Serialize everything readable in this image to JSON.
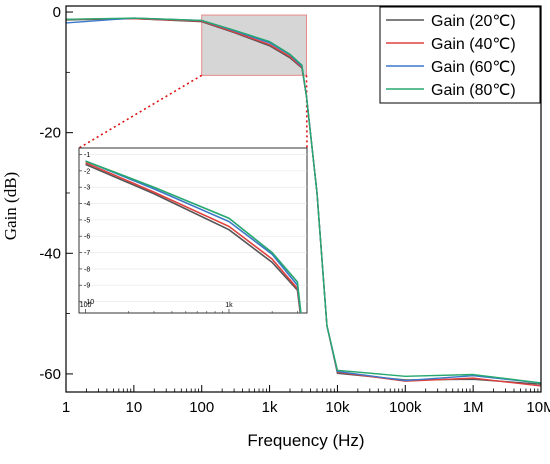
{
  "chart_data": {
    "type": "line",
    "xscale": "log",
    "xlabel": "Frequency (Hz)",
    "ylabel": "Gain (dB)",
    "xlim": [
      1,
      10000000
    ],
    "ylim": [
      -63,
      1
    ],
    "x_ticks": [
      {
        "value": 1,
        "label": "1"
      },
      {
        "value": 10,
        "label": "10"
      },
      {
        "value": 100,
        "label": "100"
      },
      {
        "value": 1000,
        "label": "1k"
      },
      {
        "value": 10000,
        "label": "10k"
      },
      {
        "value": 100000,
        "label": "100k"
      },
      {
        "value": 1000000,
        "label": "1M"
      },
      {
        "value": 10000000,
        "label": "10M"
      }
    ],
    "y_ticks": [
      {
        "value": 0,
        "label": "0"
      },
      {
        "value": -20,
        "label": "-20"
      },
      {
        "value": -40,
        "label": "-40"
      },
      {
        "value": -60,
        "label": "-60"
      }
    ],
    "legend_position": "top-right",
    "series": [
      {
        "name": "Gain (20℃)",
        "color": "#555555",
        "x": [
          1,
          10,
          100,
          300,
          1000,
          2000,
          3000,
          3500,
          5000,
          7000,
          10000,
          100000,
          1000000,
          10000000
        ],
        "y": [
          -1.3,
          -1.1,
          -1.6,
          -3.4,
          -5.6,
          -7.6,
          -9.3,
          -14,
          -30,
          -52,
          -59.9,
          -61.0,
          -60.9,
          -61.7
        ]
      },
      {
        "name": "Gain (40℃)",
        "color": "#e0413f",
        "x": [
          1,
          10,
          100,
          300,
          1000,
          2000,
          3000,
          3500,
          5000,
          7000,
          10000,
          100000,
          1000000,
          10000000
        ],
        "y": [
          -1.2,
          -1.1,
          -1.5,
          -3.3,
          -5.4,
          -7.4,
          -9.2,
          -14,
          -30,
          -52,
          -59.7,
          -61.2,
          -60.7,
          -62.0
        ]
      },
      {
        "name": "Gain (60℃)",
        "color": "#3a78c9",
        "x": [
          1,
          10,
          100,
          300,
          1000,
          2000,
          3000,
          3500,
          5000,
          7000,
          10000,
          100000,
          1000000,
          10000000
        ],
        "y": [
          -1.8,
          -1.0,
          -1.4,
          -3.1,
          -5.1,
          -7.1,
          -9.0,
          -14,
          -30,
          -52,
          -59.6,
          -61.1,
          -60.3,
          -61.5
        ]
      },
      {
        "name": "Gain (80℃)",
        "color": "#27a86f",
        "x": [
          1,
          10,
          100,
          300,
          1000,
          2000,
          3000,
          3500,
          5000,
          7000,
          10000,
          100000,
          1000000,
          10000000
        ],
        "y": [
          -1.2,
          -1.0,
          -1.4,
          -3.0,
          -4.9,
          -7.0,
          -8.8,
          -14,
          -30,
          -52,
          -59.4,
          -60.4,
          -60.1,
          -61.5
        ]
      }
    ],
    "zoom_region": {
      "x": [
        100,
        3500
      ],
      "y": [
        -10.5,
        -0.5
      ]
    },
    "inset": {
      "xscale": "log",
      "xlim": [
        90,
        3500
      ],
      "ylim": [
        -10.7,
        -0.6
      ],
      "x_ticks": [
        {
          "value": 100,
          "label": "100"
        },
        {
          "value": 1000,
          "label": "1k"
        }
      ],
      "y_ticks": [
        {
          "value": -1,
          "label": "-1"
        },
        {
          "value": -2,
          "label": "-2"
        },
        {
          "value": -3,
          "label": "-3"
        },
        {
          "value": -4,
          "label": "-4"
        },
        {
          "value": -5,
          "label": "-5"
        },
        {
          "value": -6,
          "label": "-6"
        },
        {
          "value": -7,
          "label": "-7"
        },
        {
          "value": -8,
          "label": "-8"
        },
        {
          "value": -9,
          "label": "-9"
        },
        {
          "value": -10,
          "label": "-10"
        }
      ]
    }
  }
}
